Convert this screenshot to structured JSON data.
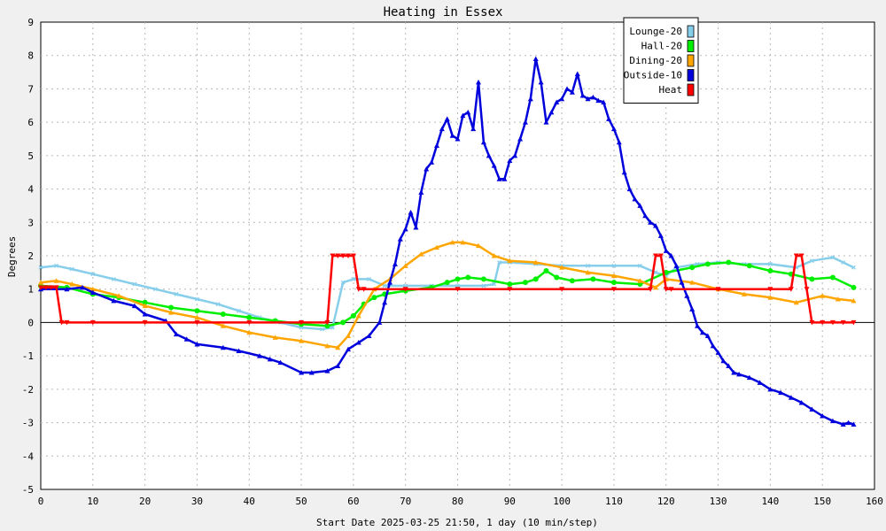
{
  "chart_data": {
    "type": "line",
    "title": "Heating in Essex",
    "xlabel": "Start Date 2025-03-25 21:50, 1 day (10 min/step)",
    "ylabel": "Degrees",
    "xlim": [
      0,
      160
    ],
    "ylim": [
      -5,
      9
    ],
    "x_ticks": [
      0,
      10,
      20,
      30,
      40,
      50,
      60,
      70,
      80,
      90,
      100,
      110,
      120,
      130,
      140,
      150,
      160
    ],
    "y_ticks": [
      -5,
      -4,
      -3,
      -2,
      -1,
      0,
      1,
      2,
      3,
      4,
      5,
      6,
      7,
      8,
      9
    ],
    "grid": true,
    "legend_position": "top-right",
    "series": [
      {
        "name": "Lounge-20",
        "color": "#87ceeb",
        "marker": "x",
        "points": [
          [
            0,
            1.65
          ],
          [
            3,
            1.7
          ],
          [
            6,
            1.6
          ],
          [
            10,
            1.45
          ],
          [
            14,
            1.3
          ],
          [
            18,
            1.15
          ],
          [
            22,
            1.0
          ],
          [
            26,
            0.85
          ],
          [
            30,
            0.7
          ],
          [
            34,
            0.55
          ],
          [
            38,
            0.35
          ],
          [
            42,
            0.15
          ],
          [
            46,
            0.0
          ],
          [
            50,
            -0.15
          ],
          [
            54,
            -0.2
          ],
          [
            56,
            -0.15
          ],
          [
            58,
            1.2
          ],
          [
            60,
            1.3
          ],
          [
            63,
            1.3
          ],
          [
            66,
            1.1
          ],
          [
            70,
            1.1
          ],
          [
            75,
            1.1
          ],
          [
            80,
            1.1
          ],
          [
            85,
            1.1
          ],
          [
            87,
            1.15
          ],
          [
            88,
            1.8
          ],
          [
            90,
            1.8
          ],
          [
            95,
            1.75
          ],
          [
            100,
            1.7
          ],
          [
            105,
            1.7
          ],
          [
            110,
            1.7
          ],
          [
            115,
            1.7
          ],
          [
            118,
            1.5
          ],
          [
            120,
            1.4
          ],
          [
            122,
            1.65
          ],
          [
            126,
            1.75
          ],
          [
            130,
            1.8
          ],
          [
            135,
            1.75
          ],
          [
            140,
            1.75
          ],
          [
            145,
            1.65
          ],
          [
            148,
            1.85
          ],
          [
            152,
            1.95
          ],
          [
            154,
            1.8
          ],
          [
            156,
            1.65
          ]
        ]
      },
      {
        "name": "Hall-20",
        "color": "#00ee00",
        "marker": "circle",
        "points": [
          [
            0,
            1.1
          ],
          [
            5,
            1.05
          ],
          [
            10,
            0.85
          ],
          [
            15,
            0.75
          ],
          [
            20,
            0.6
          ],
          [
            25,
            0.45
          ],
          [
            30,
            0.35
          ],
          [
            35,
            0.25
          ],
          [
            40,
            0.15
          ],
          [
            45,
            0.05
          ],
          [
            50,
            -0.05
          ],
          [
            55,
            -0.1
          ],
          [
            58,
            0.0
          ],
          [
            60,
            0.2
          ],
          [
            62,
            0.55
          ],
          [
            64,
            0.75
          ],
          [
            66,
            0.85
          ],
          [
            70,
            0.95
          ],
          [
            75,
            1.05
          ],
          [
            78,
            1.2
          ],
          [
            80,
            1.3
          ],
          [
            82,
            1.35
          ],
          [
            85,
            1.3
          ],
          [
            90,
            1.15
          ],
          [
            93,
            1.2
          ],
          [
            95,
            1.3
          ],
          [
            97,
            1.55
          ],
          [
            99,
            1.35
          ],
          [
            102,
            1.25
          ],
          [
            106,
            1.3
          ],
          [
            110,
            1.2
          ],
          [
            115,
            1.15
          ],
          [
            120,
            1.5
          ],
          [
            125,
            1.65
          ],
          [
            128,
            1.75
          ],
          [
            132,
            1.8
          ],
          [
            136,
            1.7
          ],
          [
            140,
            1.55
          ],
          [
            144,
            1.45
          ],
          [
            148,
            1.3
          ],
          [
            152,
            1.35
          ],
          [
            156,
            1.05
          ]
        ]
      },
      {
        "name": "Dining-20",
        "color": "#ffa500",
        "marker": "triangle",
        "points": [
          [
            0,
            1.2
          ],
          [
            3,
            1.25
          ],
          [
            6,
            1.15
          ],
          [
            10,
            1.0
          ],
          [
            15,
            0.8
          ],
          [
            20,
            0.5
          ],
          [
            25,
            0.3
          ],
          [
            30,
            0.15
          ],
          [
            35,
            -0.1
          ],
          [
            40,
            -0.3
          ],
          [
            45,
            -0.45
          ],
          [
            50,
            -0.55
          ],
          [
            55,
            -0.7
          ],
          [
            57,
            -0.75
          ],
          [
            59,
            -0.4
          ],
          [
            61,
            0.2
          ],
          [
            64,
            1.0
          ],
          [
            67,
            1.3
          ],
          [
            70,
            1.7
          ],
          [
            73,
            2.05
          ],
          [
            76,
            2.25
          ],
          [
            79,
            2.4
          ],
          [
            81,
            2.4
          ],
          [
            84,
            2.3
          ],
          [
            87,
            2.0
          ],
          [
            90,
            1.85
          ],
          [
            95,
            1.8
          ],
          [
            100,
            1.65
          ],
          [
            105,
            1.5
          ],
          [
            110,
            1.4
          ],
          [
            115,
            1.25
          ],
          [
            118,
            1.05
          ],
          [
            120,
            1.3
          ],
          [
            125,
            1.2
          ],
          [
            130,
            1.0
          ],
          [
            135,
            0.85
          ],
          [
            140,
            0.75
          ],
          [
            145,
            0.6
          ],
          [
            150,
            0.8
          ],
          [
            153,
            0.7
          ],
          [
            156,
            0.65
          ]
        ]
      },
      {
        "name": "Outside-10",
        "color": "#0000dd",
        "marker": "triangle",
        "points": [
          [
            0,
            1.0
          ],
          [
            5,
            1.0
          ],
          [
            8,
            1.05
          ],
          [
            10,
            0.9
          ],
          [
            14,
            0.65
          ],
          [
            18,
            0.5
          ],
          [
            20,
            0.25
          ],
          [
            24,
            0.05
          ],
          [
            26,
            -0.35
          ],
          [
            28,
            -0.5
          ],
          [
            30,
            -0.65
          ],
          [
            35,
            -0.75
          ],
          [
            38,
            -0.85
          ],
          [
            42,
            -1.0
          ],
          [
            44,
            -1.1
          ],
          [
            46,
            -1.2
          ],
          [
            50,
            -1.5
          ],
          [
            52,
            -1.5
          ],
          [
            55,
            -1.45
          ],
          [
            57,
            -1.3
          ],
          [
            59,
            -0.8
          ],
          [
            61,
            -0.6
          ],
          [
            63,
            -0.4
          ],
          [
            65,
            0.0
          ],
          [
            66,
            0.6
          ],
          [
            67,
            1.2
          ],
          [
            68,
            1.75
          ],
          [
            69,
            2.5
          ],
          [
            70,
            2.8
          ],
          [
            71,
            3.3
          ],
          [
            72,
            2.85
          ],
          [
            73,
            3.9
          ],
          [
            74,
            4.6
          ],
          [
            75,
            4.8
          ],
          [
            76,
            5.3
          ],
          [
            77,
            5.8
          ],
          [
            78,
            6.1
          ],
          [
            79,
            5.6
          ],
          [
            80,
            5.5
          ],
          [
            81,
            6.2
          ],
          [
            82,
            6.3
          ],
          [
            83,
            5.8
          ],
          [
            84,
            7.2
          ],
          [
            85,
            5.4
          ],
          [
            86,
            5.0
          ],
          [
            87,
            4.7
          ],
          [
            88,
            4.3
          ],
          [
            89,
            4.3
          ],
          [
            90,
            4.85
          ],
          [
            91,
            5.0
          ],
          [
            92,
            5.5
          ],
          [
            93,
            6.0
          ],
          [
            94,
            6.7
          ],
          [
            95,
            7.9
          ],
          [
            96,
            7.2
          ],
          [
            97,
            6.0
          ],
          [
            98,
            6.3
          ],
          [
            99,
            6.6
          ],
          [
            100,
            6.7
          ],
          [
            101,
            7.0
          ],
          [
            102,
            6.9
          ],
          [
            103,
            7.45
          ],
          [
            104,
            6.8
          ],
          [
            105,
            6.7
          ],
          [
            106,
            6.75
          ],
          [
            107,
            6.65
          ],
          [
            108,
            6.6
          ],
          [
            109,
            6.1
          ],
          [
            110,
            5.8
          ],
          [
            111,
            5.4
          ],
          [
            112,
            4.5
          ],
          [
            113,
            4.0
          ],
          [
            114,
            3.7
          ],
          [
            115,
            3.5
          ],
          [
            116,
            3.2
          ],
          [
            117,
            3.0
          ],
          [
            118,
            2.9
          ],
          [
            119,
            2.6
          ],
          [
            120,
            2.15
          ],
          [
            121,
            2.0
          ],
          [
            122,
            1.7
          ],
          [
            123,
            1.2
          ],
          [
            124,
            0.8
          ],
          [
            125,
            0.4
          ],
          [
            126,
            -0.1
          ],
          [
            127,
            -0.3
          ],
          [
            128,
            -0.4
          ],
          [
            129,
            -0.7
          ],
          [
            130,
            -0.9
          ],
          [
            131,
            -1.15
          ],
          [
            132,
            -1.3
          ],
          [
            133,
            -1.5
          ],
          [
            134,
            -1.55
          ],
          [
            136,
            -1.65
          ],
          [
            138,
            -1.8
          ],
          [
            140,
            -2.0
          ],
          [
            142,
            -2.1
          ],
          [
            144,
            -2.25
          ],
          [
            146,
            -2.4
          ],
          [
            148,
            -2.6
          ],
          [
            150,
            -2.8
          ],
          [
            152,
            -2.95
          ],
          [
            154,
            -3.05
          ],
          [
            155,
            -3.0
          ],
          [
            156,
            -3.05
          ]
        ]
      },
      {
        "name": "Heat",
        "color": "#ff0000",
        "marker": "triangle-down",
        "points": [
          [
            0,
            1.05
          ],
          [
            1,
            1.05
          ],
          [
            2,
            1.05
          ],
          [
            3,
            1.05
          ],
          [
            4,
            0.0
          ],
          [
            5,
            0.0
          ],
          [
            10,
            0.0
          ],
          [
            20,
            0.0
          ],
          [
            30,
            0.0
          ],
          [
            40,
            0.0
          ],
          [
            50,
            0.0
          ],
          [
            55,
            0.0
          ],
          [
            56,
            2.0
          ],
          [
            57,
            2.0
          ],
          [
            58,
            2.0
          ],
          [
            59,
            2.0
          ],
          [
            60,
            2.0
          ],
          [
            61,
            1.0
          ],
          [
            62,
            1.0
          ],
          [
            70,
            1.0
          ],
          [
            80,
            1.0
          ],
          [
            90,
            1.0
          ],
          [
            100,
            1.0
          ],
          [
            110,
            1.0
          ],
          [
            117,
            1.0
          ],
          [
            118,
            2.0
          ],
          [
            119,
            2.0
          ],
          [
            120,
            1.0
          ],
          [
            121,
            1.0
          ],
          [
            130,
            1.0
          ],
          [
            140,
            1.0
          ],
          [
            144,
            1.0
          ],
          [
            145,
            2.0
          ],
          [
            146,
            2.0
          ],
          [
            147,
            1.0
          ],
          [
            148,
            0.0
          ],
          [
            150,
            0.0
          ],
          [
            152,
            0.0
          ],
          [
            154,
            0.0
          ],
          [
            156,
            0.0
          ]
        ]
      }
    ]
  }
}
